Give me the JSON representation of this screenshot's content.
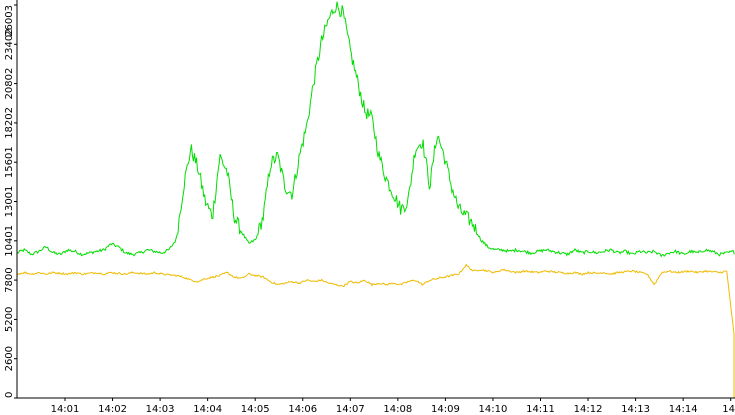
{
  "chart_data": {
    "type": "line",
    "title": "",
    "xlabel": "",
    "ylabel": "",
    "x_ticks": [
      "14:01",
      "14:02",
      "14:03",
      "14:04",
      "14:05",
      "14:06",
      "14:07",
      "14:08",
      "14:09",
      "14:10",
      "14:11",
      "14:12",
      "14:13",
      "14:14",
      "14"
    ],
    "y_ticks": [
      "0",
      "2600",
      "5200",
      "7800",
      "10401",
      "13001",
      "15601",
      "18202",
      "20802",
      "23402",
      "26003"
    ],
    "ylim": [
      0,
      26003
    ],
    "grid": false,
    "legend": "none",
    "series": [
      {
        "color": "#00dd00",
        "values": [
          9600,
          9800,
          9500,
          9700,
          10000,
          9600,
          9500,
          9800,
          9700,
          9500,
          9600,
          9700,
          9800,
          10200,
          10000,
          9600,
          9500,
          9600,
          9800,
          9700,
          9600,
          9800,
          10500,
          14000,
          16500,
          15200,
          13000,
          12000,
          16000,
          15000,
          12000,
          11000,
          10200,
          10500,
          12000,
          15500,
          16000,
          14000,
          13500,
          16000,
          18000,
          21000,
          23500,
          25000,
          26000,
          25500,
          23000,
          21000,
          19000,
          18500,
          16000,
          14500,
          13500,
          12500,
          13000,
          16500,
          17000,
          14000,
          17500,
          16000,
          14000,
          12500,
          12000,
          11500,
          10500,
          10000,
          9800,
          9800,
          9700,
          9800,
          9700,
          9600,
          9700,
          9800,
          9700,
          9600,
          9500,
          9800,
          9600,
          9700,
          9600,
          9700,
          9800,
          9600,
          9700,
          9500,
          9700,
          9600,
          9700,
          9400,
          9600,
          9700,
          9500,
          9700,
          9600,
          9800,
          9700,
          9500,
          9600,
          9700
        ]
      },
      {
        "color": "#eebb00",
        "values": [
          8200,
          8300,
          8200,
          8300,
          8200,
          8300,
          8250,
          8200,
          8300,
          8200,
          8250,
          8300,
          8200,
          8300,
          8250,
          8200,
          8300,
          8250,
          8200,
          8300,
          8200,
          8150,
          8100,
          8000,
          7800,
          7700,
          7900,
          8000,
          8100,
          8300,
          8000,
          7900,
          8200,
          8100,
          8000,
          7700,
          7500,
          7600,
          7700,
          7600,
          7800,
          7700,
          7800,
          7600,
          7500,
          7400,
          7700,
          7600,
          7800,
          7500,
          7600,
          7500,
          7600,
          7500,
          7700,
          7800,
          7500,
          7800,
          7900,
          8000,
          8100,
          8200,
          8800,
          8400,
          8500,
          8400,
          8300,
          8500,
          8400,
          8300,
          8400,
          8350,
          8300,
          8400,
          8350,
          8300,
          8250,
          8300,
          8200,
          8300,
          8250,
          8300,
          8200,
          8300,
          8350,
          8400,
          8300,
          8200,
          7500,
          8300,
          8400,
          8300,
          8350,
          8400,
          8300,
          8400,
          8350,
          8300,
          8400,
          4200
        ]
      }
    ]
  }
}
